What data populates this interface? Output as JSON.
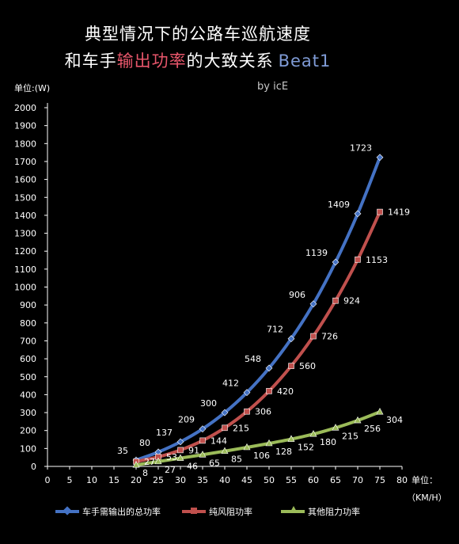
{
  "title": {
    "line1": "典型情况下的公路车巡航速度",
    "line2_part1": "和车手",
    "line2_accent": "输出功率",
    "line2_part2": "的大致关系",
    "line2_tag": "Beat1"
  },
  "author": "by icE",
  "colors": {
    "background": "#000000",
    "total": "#4472c4",
    "wind": "#c0504d",
    "other": "#9bbb59",
    "accent_text": "#e8566b",
    "tag_text": "#7f9bd6"
  },
  "chart_data": {
    "type": "line",
    "ylabel": "单位:(W)",
    "xlabel": "单位：",
    "xlabel_unit": "（KM/H）",
    "xlim": [
      0,
      80
    ],
    "ylim": [
      0,
      2000
    ],
    "x_ticks": [
      0,
      5,
      10,
      15,
      20,
      25,
      30,
      35,
      40,
      45,
      50,
      55,
      60,
      65,
      70,
      75,
      80
    ],
    "y_ticks": [
      0,
      100,
      200,
      300,
      400,
      500,
      600,
      700,
      800,
      900,
      1000,
      1100,
      1200,
      1300,
      1400,
      1500,
      1600,
      1700,
      1800,
      1900,
      2000
    ],
    "grid": false,
    "legend_position": "bottom",
    "x": [
      20,
      25,
      30,
      35,
      40,
      45,
      50,
      55,
      60,
      65,
      70,
      75
    ],
    "series": [
      {
        "name": "车手需输出的总功率",
        "color": "#4472c4",
        "marker": "diamond",
        "values": [
          35,
          80,
          137,
          209,
          300,
          412,
          548,
          712,
          906,
          1139,
          1409,
          1723
        ]
      },
      {
        "name": "纯风阻功率",
        "color": "#c0504d",
        "marker": "square",
        "values": [
          27,
          53,
          91,
          144,
          215,
          306,
          420,
          560,
          726,
          924,
          1153,
          1419
        ]
      },
      {
        "name": "其他阻力功率",
        "color": "#9bbb59",
        "marker": "triangle",
        "values": [
          8,
          27,
          46,
          65,
          85,
          106,
          128,
          152,
          180,
          215,
          256,
          304
        ]
      }
    ]
  }
}
